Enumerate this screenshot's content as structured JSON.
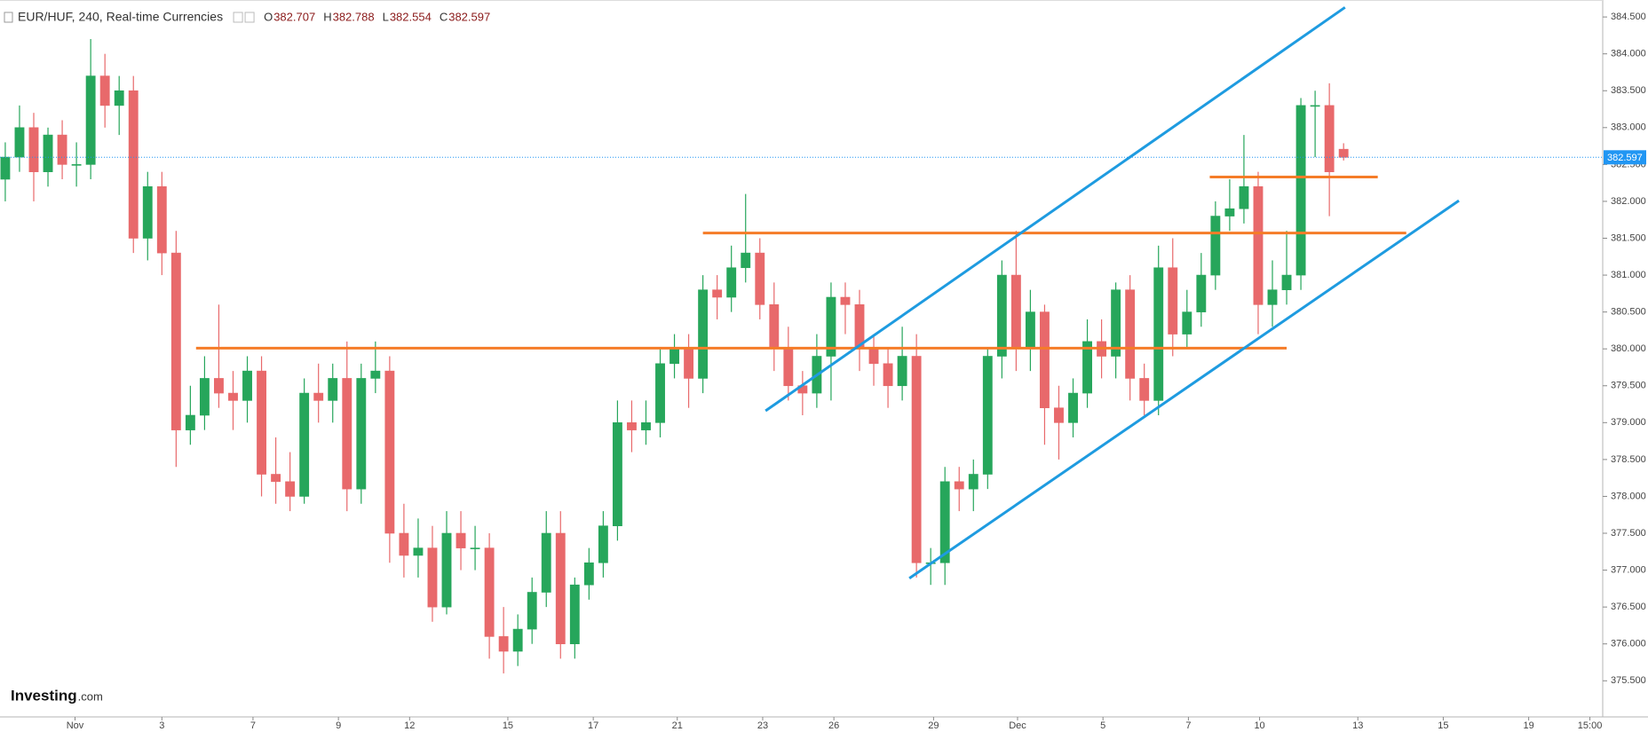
{
  "chart_data": {
    "type": "candlestick",
    "title": "EUR/HUF, 240, Real-time Currencies",
    "ohlc_labels": [
      "O",
      "H",
      "L",
      "C"
    ],
    "logo": [
      "Investing",
      ".com"
    ],
    "up_color": "#26a65b",
    "down_color": "#e8696b",
    "current_price_color": "#2196f3",
    "grid": false,
    "open": [
      382.3,
      382.6,
      383.0,
      382.4,
      382.9,
      382.5,
      382.5,
      383.7,
      383.3,
      383.5,
      381.5,
      382.2,
      381.3,
      378.9,
      379.1,
      379.6,
      379.4,
      379.3,
      379.7,
      378.3,
      378.2,
      378.0,
      379.4,
      379.3,
      379.6,
      378.1,
      379.6,
      379.7,
      377.5,
      377.2,
      377.3,
      376.5,
      377.5,
      377.3,
      377.3,
      376.1,
      375.9,
      376.2,
      376.7,
      377.5,
      376.0,
      376.8,
      377.1,
      377.6,
      379.0,
      378.9,
      379.0,
      379.8,
      380.0,
      379.6,
      380.8,
      380.7,
      381.1,
      381.3,
      380.6,
      380.0,
      379.5,
      379.4,
      379.9,
      380.7,
      380.6,
      380.0,
      379.8,
      379.5,
      379.9,
      377.1,
      377.1,
      378.2,
      378.1,
      378.3,
      379.9,
      381.0,
      380.0,
      380.5,
      379.2,
      379.0,
      379.4,
      380.1,
      379.9,
      380.8,
      379.6,
      379.3,
      381.1,
      380.2,
      380.5,
      381.0,
      381.8,
      381.9,
      382.2,
      380.6,
      380.8,
      381.0,
      383.3,
      383.3,
      382.707
    ],
    "high": [
      382.8,
      383.3,
      383.2,
      383.0,
      383.1,
      382.8,
      384.2,
      384.0,
      383.7,
      383.7,
      382.4,
      382.4,
      381.6,
      379.5,
      379.9,
      380.6,
      379.7,
      379.9,
      379.9,
      378.8,
      378.6,
      379.6,
      379.8,
      379.8,
      380.1,
      379.8,
      380.1,
      379.9,
      377.9,
      377.7,
      377.6,
      377.8,
      377.8,
      377.6,
      377.5,
      376.5,
      376.4,
      376.9,
      377.8,
      377.8,
      376.9,
      377.3,
      377.8,
      379.3,
      379.3,
      379.3,
      380.0,
      380.2,
      380.2,
      381.0,
      381.0,
      381.4,
      382.1,
      381.5,
      380.9,
      380.3,
      379.7,
      380.2,
      380.9,
      380.9,
      380.8,
      380.2,
      380.0,
      380.3,
      380.2,
      377.3,
      378.4,
      378.4,
      378.5,
      380.0,
      381.2,
      381.6,
      380.8,
      380.6,
      379.5,
      379.6,
      380.4,
      380.4,
      380.9,
      381.0,
      379.8,
      381.4,
      381.5,
      380.8,
      381.3,
      382.0,
      382.3,
      382.9,
      382.4,
      381.2,
      381.6,
      383.4,
      383.5,
      383.6,
      382.788
    ],
    "low": [
      382.0,
      382.4,
      382.0,
      382.2,
      382.3,
      382.2,
      382.3,
      383.0,
      382.9,
      381.3,
      381.2,
      381.0,
      378.4,
      378.7,
      378.9,
      379.2,
      378.9,
      379.0,
      378.0,
      377.9,
      377.8,
      377.9,
      379.0,
      379.0,
      377.8,
      377.9,
      379.4,
      377.1,
      376.9,
      376.9,
      376.3,
      376.4,
      377.0,
      377.0,
      375.8,
      375.6,
      375.7,
      376.0,
      376.5,
      375.8,
      375.8,
      376.6,
      376.9,
      377.4,
      378.6,
      378.7,
      378.8,
      379.6,
      379.2,
      379.4,
      380.4,
      380.5,
      380.9,
      380.4,
      379.7,
      379.3,
      379.1,
      379.2,
      379.3,
      380.2,
      379.7,
      379.5,
      379.2,
      379.3,
      376.9,
      376.8,
      376.8,
      377.8,
      377.8,
      378.1,
      379.6,
      379.7,
      379.7,
      378.7,
      378.5,
      378.8,
      379.2,
      379.6,
      379.6,
      379.3,
      379.1,
      379.1,
      379.9,
      380.0,
      380.3,
      380.8,
      381.6,
      381.7,
      380.2,
      380.3,
      380.6,
      380.8,
      382.6,
      381.8,
      382.554
    ],
    "close": [
      382.6,
      383.0,
      382.4,
      382.9,
      382.5,
      382.5,
      383.7,
      383.3,
      383.5,
      381.5,
      382.2,
      381.3,
      378.9,
      379.1,
      379.6,
      379.4,
      379.3,
      379.7,
      378.3,
      378.2,
      378.0,
      379.4,
      379.3,
      379.6,
      378.1,
      379.6,
      379.7,
      377.5,
      377.2,
      377.3,
      376.5,
      377.5,
      377.3,
      377.3,
      376.1,
      375.9,
      376.2,
      376.7,
      377.5,
      376.0,
      376.8,
      377.1,
      377.6,
      379.0,
      378.9,
      379.0,
      379.8,
      380.0,
      379.6,
      380.8,
      380.7,
      381.1,
      381.3,
      380.6,
      380.0,
      379.5,
      379.4,
      379.9,
      380.7,
      380.6,
      380.0,
      379.8,
      379.5,
      379.9,
      377.1,
      377.1,
      378.2,
      378.1,
      378.3,
      379.9,
      381.0,
      380.0,
      380.5,
      379.2,
      379.0,
      379.4,
      380.1,
      379.9,
      380.8,
      379.6,
      379.3,
      381.1,
      380.2,
      380.5,
      381.0,
      381.8,
      381.9,
      382.2,
      380.6,
      380.8,
      381.0,
      383.3,
      383.3,
      382.4,
      382.597
    ],
    "drawings": [
      {
        "color": "#f57c28",
        "x": [
          13.4,
          90
        ],
        "y": [
          380.01,
          380.01
        ]
      },
      {
        "color": "#f57c28",
        "x": [
          49,
          98.4
        ],
        "y": [
          381.57,
          381.57
        ]
      },
      {
        "color": "#f57c28",
        "x": [
          84.6,
          96.4
        ],
        "y": [
          382.33,
          382.33
        ]
      },
      {
        "color": "#1e9be0",
        "x": [
          53.4,
          94.1
        ],
        "y": [
          379.16,
          384.63
        ]
      },
      {
        "color": "#1e9be0",
        "x": [
          63.5,
          102.1
        ],
        "y": [
          376.89,
          382.01
        ]
      }
    ],
    "xlim": [
      -0.37,
      112.2
    ],
    "xticks": [
      {
        "value": 4.9,
        "label": "Nov"
      },
      {
        "value": 11,
        "label": "3"
      },
      {
        "value": 17.4,
        "label": "7"
      },
      {
        "value": 23.4,
        "label": "9"
      },
      {
        "value": 28.4,
        "label": "12"
      },
      {
        "value": 35.3,
        "label": "15"
      },
      {
        "value": 41.3,
        "label": "17"
      },
      {
        "value": 47.2,
        "label": "21"
      },
      {
        "value": 53.2,
        "label": "23"
      },
      {
        "value": 58.2,
        "label": "26"
      },
      {
        "value": 65.2,
        "label": "29"
      },
      {
        "value": 71.1,
        "label": "Dec"
      },
      {
        "value": 77.1,
        "label": "5"
      },
      {
        "value": 83.1,
        "label": "7"
      },
      {
        "value": 88.1,
        "label": "10"
      },
      {
        "value": 95,
        "label": "13"
      },
      {
        "value": 101,
        "label": "15"
      },
      {
        "value": 107,
        "label": "19"
      },
      {
        "value": 111.3,
        "label": "15:00"
      }
    ],
    "ylim": [
      375.01,
      384.73
    ],
    "yticks": [
      {
        "value": 375.5,
        "label": "375.500"
      },
      {
        "value": 376,
        "label": "376.000"
      },
      {
        "value": 376.5,
        "label": "376.500"
      },
      {
        "value": 377,
        "label": "377.000"
      },
      {
        "value": 377.5,
        "label": "377.500"
      },
      {
        "value": 378,
        "label": "378.000"
      },
      {
        "value": 378.5,
        "label": "378.500"
      },
      {
        "value": 379,
        "label": "379.000"
      },
      {
        "value": 379.5,
        "label": "379.500"
      },
      {
        "value": 380,
        "label": "380.000"
      },
      {
        "value": 380.5,
        "label": "380.500"
      },
      {
        "value": 381,
        "label": "381.000"
      },
      {
        "value": 381.5,
        "label": "381.500"
      },
      {
        "value": 382,
        "label": "382.000"
      },
      {
        "value": 382.5,
        "label": "382.500"
      },
      {
        "value": 383,
        "label": "383.000"
      },
      {
        "value": 383.5,
        "label": "383.500"
      },
      {
        "value": 384,
        "label": "384.000"
      },
      {
        "value": 384.5,
        "label": "384.500"
      }
    ]
  }
}
